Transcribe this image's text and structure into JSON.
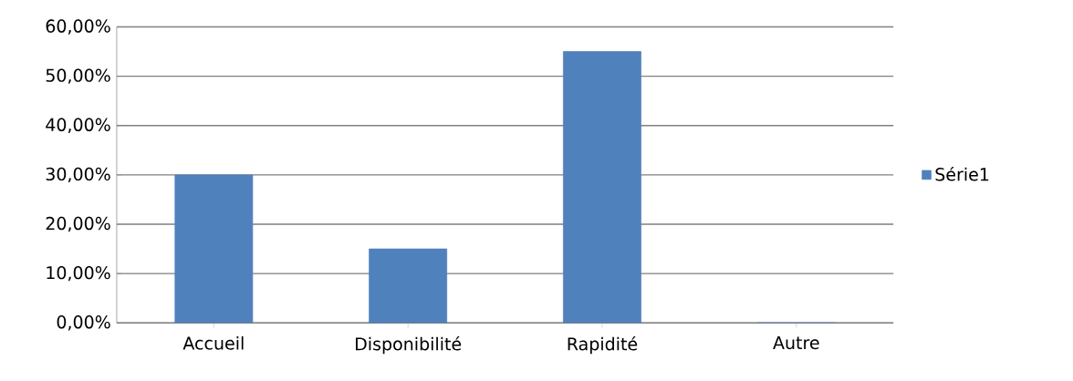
{
  "chart_data": {
    "type": "bar",
    "categories": [
      "Accueil",
      "Disponibilité",
      "Rapidité",
      "Autre"
    ],
    "series": [
      {
        "name": "Série1",
        "color": "#4f81bd",
        "values": [
          30,
          15,
          55,
          0
        ]
      }
    ],
    "ylim": [
      0,
      60
    ],
    "yticks": [
      {
        "value": 0,
        "label": "0,00%"
      },
      {
        "value": 10,
        "label": "10,00%"
      },
      {
        "value": 20,
        "label": "20,00%"
      },
      {
        "value": 30,
        "label": "30,00%"
      },
      {
        "value": 40,
        "label": "40,00%"
      },
      {
        "value": 50,
        "label": "50,00%"
      },
      {
        "value": 60,
        "label": "60,00%"
      }
    ],
    "grid": "y",
    "legend": "right"
  }
}
